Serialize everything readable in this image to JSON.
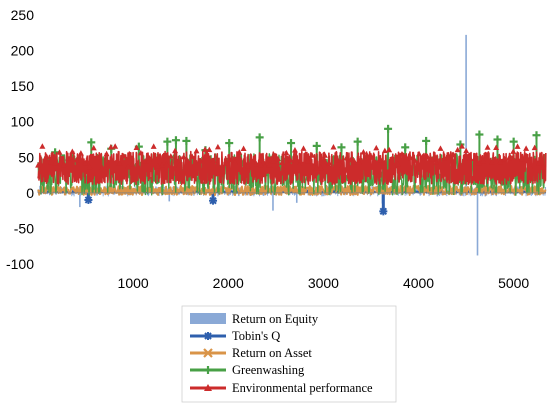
{
  "chart_data": {
    "type": "line",
    "title": "",
    "xlabel": "",
    "ylabel": "",
    "xlim": [
      0,
      5340
    ],
    "ylim": [
      -100,
      250
    ],
    "x_ticks": [
      1000,
      2000,
      3000,
      4000,
      5000
    ],
    "x_tick_labels": [
      "1000",
      "2000",
      "3000",
      "4000",
      "5000"
    ],
    "y_ticks": [
      250,
      200,
      150,
      100,
      50,
      0,
      -50,
      -100
    ],
    "y_tick_labels": [
      "250",
      "200",
      "150",
      "100",
      "50",
      "0",
      "-50",
      "-100"
    ],
    "grid": false,
    "legend_position": "bottom",
    "series": [
      {
        "name": "Return on Equity",
        "kind": "bar",
        "color": "#8aa9d6",
        "typical_range": [
          -5,
          10
        ],
        "spikes": [
          {
            "x": 440,
            "y": -20
          },
          {
            "x": 1380,
            "y": -12
          },
          {
            "x": 2470,
            "y": -25
          },
          {
            "x": 2720,
            "y": -14
          },
          {
            "x": 3620,
            "y": -15
          },
          {
            "x": 4500,
            "y": 222
          },
          {
            "x": 4620,
            "y": -88
          }
        ]
      },
      {
        "name": "Tobin's Q",
        "kind": "line",
        "marker": "asterisk",
        "color": "#2e5fad",
        "typical_range": [
          0,
          3
        ],
        "spikes": [
          {
            "x": 530,
            "y": -10
          },
          {
            "x": 1840,
            "y": -11
          },
          {
            "x": 3630,
            "y": -26
          }
        ]
      },
      {
        "name": "Return on Asset",
        "kind": "line",
        "marker": "x",
        "color": "#d99448",
        "typical_range": [
          -3,
          10
        ]
      },
      {
        "name": "Greenwashing",
        "kind": "line",
        "marker": "plus",
        "color": "#48a046",
        "typical_range": [
          -3,
          75
        ],
        "peaks": [
          {
            "x": 180,
            "y": 57
          },
          {
            "x": 560,
            "y": 71
          },
          {
            "x": 770,
            "y": 62
          },
          {
            "x": 1060,
            "y": 65
          },
          {
            "x": 1360,
            "y": 72
          },
          {
            "x": 1450,
            "y": 74
          },
          {
            "x": 1560,
            "y": 73
          },
          {
            "x": 1760,
            "y": 60
          },
          {
            "x": 2010,
            "y": 70
          },
          {
            "x": 2330,
            "y": 78
          },
          {
            "x": 2660,
            "y": 70
          },
          {
            "x": 2930,
            "y": 66
          },
          {
            "x": 3190,
            "y": 64
          },
          {
            "x": 3360,
            "y": 72
          },
          {
            "x": 3680,
            "y": 90
          },
          {
            "x": 3860,
            "y": 64
          },
          {
            "x": 4080,
            "y": 73
          },
          {
            "x": 4440,
            "y": 68
          },
          {
            "x": 4640,
            "y": 82
          },
          {
            "x": 4830,
            "y": 75
          },
          {
            "x": 5000,
            "y": 72
          },
          {
            "x": 5240,
            "y": 81
          }
        ]
      },
      {
        "name": "Environmental performance",
        "kind": "line",
        "marker": "triangle",
        "color": "#cc2b2b",
        "typical_range": [
          12,
          58
        ]
      }
    ]
  }
}
